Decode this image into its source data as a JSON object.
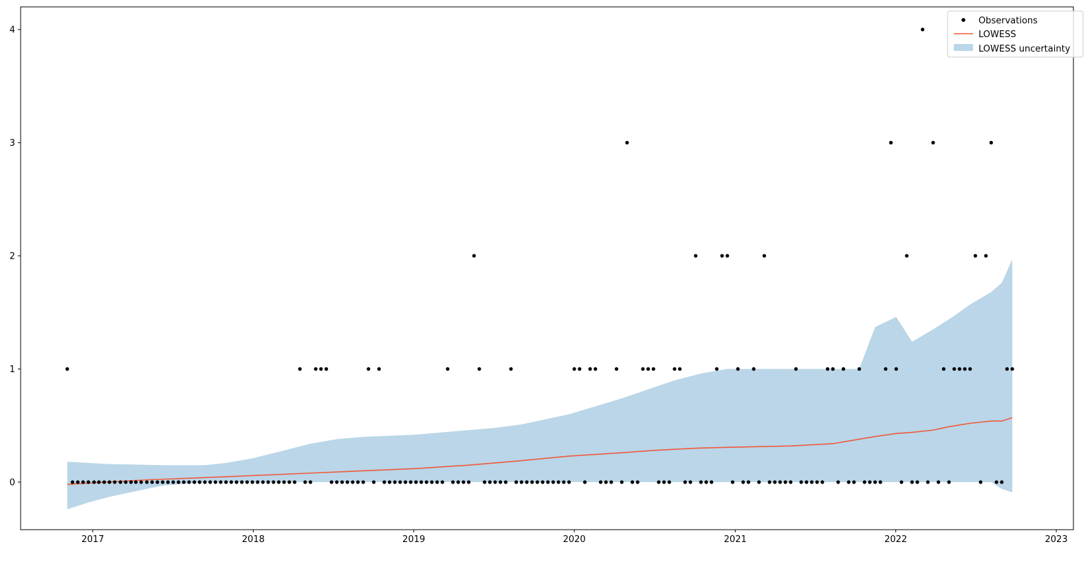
{
  "chart_data": {
    "type": "scatter",
    "title": "",
    "xlabel": "",
    "ylabel": "",
    "x_type": "date",
    "xlim": [
      "2016-07-21",
      "2023-02-09"
    ],
    "ylim": [
      -0.42,
      4.2
    ],
    "x_ticks": [
      {
        "date": "2017-01-01",
        "label": "2017"
      },
      {
        "date": "2018-01-01",
        "label": "2018"
      },
      {
        "date": "2019-01-01",
        "label": "2019"
      },
      {
        "date": "2020-01-01",
        "label": "2020"
      },
      {
        "date": "2021-01-01",
        "label": "2021"
      },
      {
        "date": "2022-01-01",
        "label": "2022"
      },
      {
        "date": "2023-01-01",
        "label": "2023"
      }
    ],
    "y_ticks": [
      {
        "value": 0,
        "label": "0"
      },
      {
        "value": 1,
        "label": "1"
      },
      {
        "value": 2,
        "label": "2"
      },
      {
        "value": 3,
        "label": "3"
      },
      {
        "value": 4,
        "label": "4"
      }
    ],
    "grid": false,
    "legend": {
      "position": "top-right",
      "entries": [
        {
          "label": "Observations",
          "kind": "marker",
          "color": "#000000"
        },
        {
          "label": "LOWESS",
          "kind": "line",
          "color": "#f05a3c"
        },
        {
          "label": "LOWESS uncertainty",
          "kind": "patch",
          "color": "#bad6e8"
        }
      ]
    },
    "observations": {
      "name": "Observations",
      "color": "#000000",
      "points": [
        [
          "2016-11-04",
          1
        ],
        [
          "2016-11-16",
          0
        ],
        [
          "2016-11-28",
          0
        ],
        [
          "2016-12-10",
          0
        ],
        [
          "2016-12-22",
          0
        ],
        [
          "2017-01-04",
          0
        ],
        [
          "2017-01-15",
          0
        ],
        [
          "2017-01-27",
          0
        ],
        [
          "2017-02-08",
          0
        ],
        [
          "2017-02-20",
          0
        ],
        [
          "2017-03-05",
          0
        ],
        [
          "2017-03-17",
          0
        ],
        [
          "2017-03-29",
          0
        ],
        [
          "2017-04-09",
          0
        ],
        [
          "2017-04-21",
          0
        ],
        [
          "2017-05-04",
          0
        ],
        [
          "2017-05-16",
          0
        ],
        [
          "2017-05-28",
          0
        ],
        [
          "2017-06-09",
          0
        ],
        [
          "2017-06-21",
          0
        ],
        [
          "2017-07-03",
          0
        ],
        [
          "2017-07-15",
          0
        ],
        [
          "2017-07-27",
          0
        ],
        [
          "2017-08-08",
          0
        ],
        [
          "2017-08-20",
          0
        ],
        [
          "2017-09-01",
          0
        ],
        [
          "2017-09-13",
          0
        ],
        [
          "2017-09-25",
          0
        ],
        [
          "2017-10-07",
          0
        ],
        [
          "2017-10-19",
          0
        ],
        [
          "2017-10-31",
          0
        ],
        [
          "2017-11-12",
          0
        ],
        [
          "2017-11-24",
          0
        ],
        [
          "2017-12-06",
          0
        ],
        [
          "2017-12-18",
          0
        ],
        [
          "2017-12-30",
          0
        ],
        [
          "2018-01-11",
          0
        ],
        [
          "2018-01-23",
          0
        ],
        [
          "2018-02-04",
          0
        ],
        [
          "2018-02-16",
          0
        ],
        [
          "2018-02-28",
          0
        ],
        [
          "2018-03-12",
          0
        ],
        [
          "2018-03-24",
          0
        ],
        [
          "2018-04-05",
          0
        ],
        [
          "2018-04-17",
          1
        ],
        [
          "2018-04-29",
          0
        ],
        [
          "2018-05-11",
          0
        ],
        [
          "2018-05-23",
          1
        ],
        [
          "2018-06-04",
          1
        ],
        [
          "2018-06-16",
          1
        ],
        [
          "2018-06-28",
          0
        ],
        [
          "2018-07-10",
          0
        ],
        [
          "2018-07-22",
          0
        ],
        [
          "2018-08-03",
          0
        ],
        [
          "2018-08-15",
          0
        ],
        [
          "2018-08-27",
          0
        ],
        [
          "2018-09-08",
          0
        ],
        [
          "2018-09-20",
          1
        ],
        [
          "2018-10-02",
          0
        ],
        [
          "2018-10-14",
          1
        ],
        [
          "2018-10-26",
          0
        ],
        [
          "2018-11-07",
          0
        ],
        [
          "2018-11-19",
          0
        ],
        [
          "2018-12-01",
          0
        ],
        [
          "2018-12-13",
          0
        ],
        [
          "2018-12-25",
          0
        ],
        [
          "2019-01-06",
          0
        ],
        [
          "2019-01-18",
          0
        ],
        [
          "2019-01-30",
          0
        ],
        [
          "2019-02-11",
          0
        ],
        [
          "2019-02-23",
          0
        ],
        [
          "2019-03-07",
          0
        ],
        [
          "2019-03-19",
          1
        ],
        [
          "2019-03-31",
          0
        ],
        [
          "2019-04-12",
          0
        ],
        [
          "2019-04-24",
          0
        ],
        [
          "2019-05-06",
          0
        ],
        [
          "2019-05-18",
          2
        ],
        [
          "2019-05-30",
          1
        ],
        [
          "2019-06-11",
          0
        ],
        [
          "2019-06-23",
          0
        ],
        [
          "2019-07-05",
          0
        ],
        [
          "2019-07-17",
          0
        ],
        [
          "2019-07-29",
          0
        ],
        [
          "2019-08-10",
          1
        ],
        [
          "2019-08-22",
          0
        ],
        [
          "2019-09-03",
          0
        ],
        [
          "2019-09-15",
          0
        ],
        [
          "2019-09-27",
          0
        ],
        [
          "2019-10-09",
          0
        ],
        [
          "2019-10-21",
          0
        ],
        [
          "2019-11-02",
          0
        ],
        [
          "2019-11-14",
          0
        ],
        [
          "2019-11-26",
          0
        ],
        [
          "2019-12-08",
          0
        ],
        [
          "2019-12-20",
          0
        ],
        [
          "2020-01-01",
          1
        ],
        [
          "2020-01-13",
          1
        ],
        [
          "2020-01-25",
          0
        ],
        [
          "2020-02-06",
          1
        ],
        [
          "2020-02-18",
          1
        ],
        [
          "2020-03-01",
          0
        ],
        [
          "2020-03-13",
          0
        ],
        [
          "2020-03-25",
          0
        ],
        [
          "2020-04-06",
          1
        ],
        [
          "2020-04-18",
          0
        ],
        [
          "2020-04-30",
          3
        ],
        [
          "2020-05-12",
          0
        ],
        [
          "2020-05-24",
          0
        ],
        [
          "2020-06-05",
          1
        ],
        [
          "2020-06-17",
          1
        ],
        [
          "2020-06-29",
          1
        ],
        [
          "2020-07-11",
          0
        ],
        [
          "2020-07-23",
          0
        ],
        [
          "2020-08-04",
          0
        ],
        [
          "2020-08-16",
          1
        ],
        [
          "2020-08-28",
          1
        ],
        [
          "2020-09-09",
          0
        ],
        [
          "2020-09-21",
          0
        ],
        [
          "2020-10-03",
          2
        ],
        [
          "2020-10-15",
          0
        ],
        [
          "2020-10-27",
          0
        ],
        [
          "2020-11-08",
          0
        ],
        [
          "2020-11-20",
          1
        ],
        [
          "2020-12-02",
          2
        ],
        [
          "2020-12-14",
          2
        ],
        [
          "2020-12-26",
          0
        ],
        [
          "2021-01-07",
          1
        ],
        [
          "2021-01-19",
          0
        ],
        [
          "2021-01-31",
          0
        ],
        [
          "2021-02-12",
          1
        ],
        [
          "2021-02-24",
          0
        ],
        [
          "2021-03-08",
          2
        ],
        [
          "2021-03-20",
          0
        ],
        [
          "2021-04-01",
          0
        ],
        [
          "2021-04-13",
          0
        ],
        [
          "2021-04-25",
          0
        ],
        [
          "2021-05-07",
          0
        ],
        [
          "2021-05-19",
          1
        ],
        [
          "2021-05-31",
          0
        ],
        [
          "2021-06-12",
          0
        ],
        [
          "2021-06-24",
          0
        ],
        [
          "2021-07-06",
          0
        ],
        [
          "2021-07-18",
          0
        ],
        [
          "2021-07-30",
          1
        ],
        [
          "2021-08-11",
          1
        ],
        [
          "2021-08-23",
          0
        ],
        [
          "2021-09-04",
          1
        ],
        [
          "2021-09-16",
          0
        ],
        [
          "2021-09-28",
          0
        ],
        [
          "2021-10-10",
          1
        ],
        [
          "2021-10-22",
          0
        ],
        [
          "2021-11-03",
          0
        ],
        [
          "2021-11-15",
          0
        ],
        [
          "2021-11-27",
          0
        ],
        [
          "2021-12-09",
          1
        ],
        [
          "2021-12-21",
          3
        ],
        [
          "2022-01-02",
          1
        ],
        [
          "2022-01-14",
          0
        ],
        [
          "2022-01-26",
          2
        ],
        [
          "2022-02-07",
          0
        ],
        [
          "2022-02-19",
          0
        ],
        [
          "2022-03-03",
          4
        ],
        [
          "2022-03-15",
          0
        ],
        [
          "2022-03-27",
          3
        ],
        [
          "2022-04-08",
          0
        ],
        [
          "2022-04-20",
          1
        ],
        [
          "2022-05-02",
          0
        ],
        [
          "2022-05-14",
          1
        ],
        [
          "2022-05-26",
          1
        ],
        [
          "2022-06-07",
          1
        ],
        [
          "2022-06-19",
          1
        ],
        [
          "2022-07-01",
          2
        ],
        [
          "2022-07-13",
          0
        ],
        [
          "2022-07-25",
          2
        ],
        [
          "2022-08-06",
          3
        ],
        [
          "2022-08-18",
          0
        ],
        [
          "2022-08-30",
          0
        ],
        [
          "2022-09-11",
          1
        ],
        [
          "2022-09-23",
          1
        ]
      ]
    },
    "lowess": {
      "name": "LOWESS",
      "color": "#f05a3c",
      "points": [
        [
          "2016-11-04",
          -0.02
        ],
        [
          "2017-01-27",
          0.0
        ],
        [
          "2017-05-04",
          0.02
        ],
        [
          "2017-09-13",
          0.04
        ],
        [
          "2018-01-11",
          0.06
        ],
        [
          "2018-05-11",
          0.08
        ],
        [
          "2018-09-08",
          0.1
        ],
        [
          "2019-01-06",
          0.12
        ],
        [
          "2019-05-06",
          0.15
        ],
        [
          "2019-09-03",
          0.19
        ],
        [
          "2019-12-20",
          0.23
        ],
        [
          "2020-04-18",
          0.26
        ],
        [
          "2020-06-29",
          0.28
        ],
        [
          "2020-10-03",
          0.3
        ],
        [
          "2021-01-07",
          0.31
        ],
        [
          "2021-05-07",
          0.32
        ],
        [
          "2021-08-11",
          0.34
        ],
        [
          "2021-10-10",
          0.38
        ],
        [
          "2021-11-27",
          0.41
        ],
        [
          "2022-01-02",
          0.43
        ],
        [
          "2022-02-07",
          0.44
        ],
        [
          "2022-03-27",
          0.46
        ],
        [
          "2022-05-02",
          0.49
        ],
        [
          "2022-06-19",
          0.52
        ],
        [
          "2022-08-06",
          0.54
        ],
        [
          "2022-08-30",
          0.54
        ],
        [
          "2022-09-23",
          0.57
        ]
      ]
    },
    "uncertainty": {
      "name": "LOWESS uncertainty",
      "color": "#bad6e8",
      "points": [
        [
          "2016-11-04",
          -0.24,
          0.18
        ],
        [
          "2016-12-22",
          -0.18,
          0.17
        ],
        [
          "2017-02-08",
          -0.13,
          0.16
        ],
        [
          "2017-04-09",
          -0.08,
          0.155
        ],
        [
          "2017-06-09",
          -0.03,
          0.15
        ],
        [
          "2017-09-13",
          0.0,
          0.15
        ],
        [
          "2017-10-31",
          0.0,
          0.17
        ],
        [
          "2017-12-30",
          0.0,
          0.21
        ],
        [
          "2018-03-12",
          0.0,
          0.28
        ],
        [
          "2018-05-11",
          0.0,
          0.34
        ],
        [
          "2018-07-10",
          0.0,
          0.38
        ],
        [
          "2018-09-08",
          0.0,
          0.4
        ],
        [
          "2018-11-07",
          0.0,
          0.41
        ],
        [
          "2019-01-06",
          0.0,
          0.42
        ],
        [
          "2019-03-07",
          0.0,
          0.44
        ],
        [
          "2019-05-06",
          0.0,
          0.46
        ],
        [
          "2019-07-05",
          0.0,
          0.48
        ],
        [
          "2019-09-03",
          0.0,
          0.51
        ],
        [
          "2019-11-02",
          0.0,
          0.56
        ],
        [
          "2019-12-20",
          0.0,
          0.6
        ],
        [
          "2020-02-18",
          0.0,
          0.67
        ],
        [
          "2020-04-18",
          0.0,
          0.74
        ],
        [
          "2020-06-17",
          0.0,
          0.82
        ],
        [
          "2020-08-16",
          0.0,
          0.9
        ],
        [
          "2020-10-15",
          0.0,
          0.96
        ],
        [
          "2020-12-14",
          0.0,
          1.0
        ],
        [
          "2021-02-12",
          0.0,
          1.0
        ],
        [
          "2021-08-11",
          0.0,
          1.0
        ],
        [
          "2021-10-10",
          0.0,
          1.0
        ],
        [
          "2021-11-15",
          0.0,
          1.37
        ],
        [
          "2022-01-02",
          0.0,
          1.46
        ],
        [
          "2022-02-07",
          0.0,
          1.24
        ],
        [
          "2022-03-27",
          0.0,
          1.35
        ],
        [
          "2022-05-14",
          0.0,
          1.47
        ],
        [
          "2022-06-19",
          0.0,
          1.57
        ],
        [
          "2022-08-06",
          0.0,
          1.68
        ],
        [
          "2022-08-30",
          -0.06,
          1.76
        ],
        [
          "2022-09-23",
          -0.09,
          1.97
        ]
      ]
    }
  }
}
